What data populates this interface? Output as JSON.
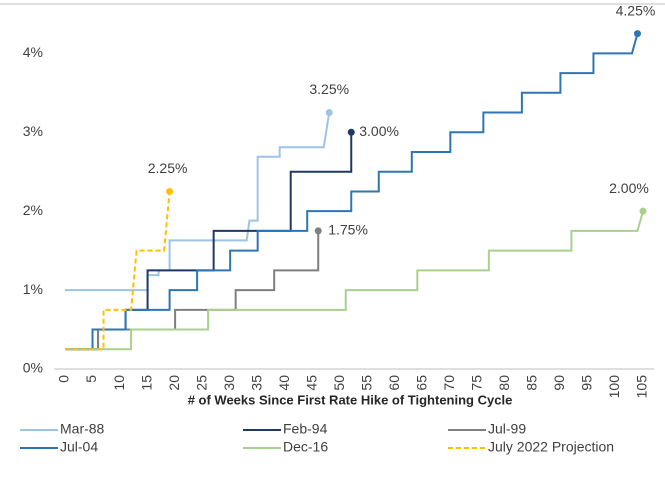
{
  "chart_data": {
    "type": "line",
    "x_label": "# of Weeks Since First Rate Hike of Tightening Cycle",
    "xlim": [
      -2,
      107
    ],
    "xticks": [
      0,
      5,
      10,
      15,
      20,
      25,
      30,
      35,
      40,
      45,
      50,
      55,
      60,
      65,
      70,
      75,
      80,
      85,
      90,
      95,
      100,
      105
    ],
    "ylim": [
      0,
      4.6
    ],
    "yticks": [
      {
        "value": 0,
        "label": "0%"
      },
      {
        "value": 1,
        "label": "1%"
      },
      {
        "value": 2,
        "label": "2%"
      },
      {
        "value": 3,
        "label": "3%"
      },
      {
        "value": 4,
        "label": "4%"
      }
    ],
    "legend": "bottom",
    "series": [
      {
        "name": "Mar-88",
        "color": "#9dc3e6",
        "end_label": "3.25%",
        "x": [
          0,
          15,
          15,
          17,
          17,
          19,
          19,
          33,
          33.5,
          35,
          35,
          39,
          39,
          47,
          48
        ],
        "values": [
          1,
          1,
          1.19,
          1.19,
          1.25,
          1.25,
          1.63,
          1.63,
          1.88,
          1.88,
          2.69,
          2.69,
          2.81,
          2.81,
          3.25
        ]
      },
      {
        "name": "Feb-94",
        "color": "#1f3864",
        "end_label": "3.00%",
        "x": [
          0,
          6,
          6,
          11,
          11,
          15,
          15,
          27,
          27,
          41,
          41,
          52,
          52
        ],
        "values": [
          0.25,
          0.25,
          0.5,
          0.5,
          0.75,
          0.75,
          1.25,
          1.25,
          1.75,
          1.75,
          2.5,
          2.5,
          3.0
        ]
      },
      {
        "name": "Jul-99",
        "color": "#7f7f7f",
        "end_label": "1.75%",
        "x": [
          0,
          6,
          6,
          20,
          20,
          31,
          31,
          38,
          38,
          46,
          46
        ],
        "values": [
          0.25,
          0.25,
          0.5,
          0.5,
          0.75,
          0.75,
          1.0,
          1.0,
          1.25,
          1.25,
          1.75
        ]
      },
      {
        "name": "Jul-04",
        "color": "#2e75b6",
        "end_label": "4.25%",
        "x": [
          0,
          5,
          5,
          11,
          11,
          19,
          19,
          24,
          24,
          30,
          30,
          35,
          35,
          44,
          44,
          52,
          52,
          57,
          57,
          63,
          63,
          70,
          70,
          76,
          76,
          83,
          83,
          90,
          90,
          96,
          96,
          103,
          104
        ],
        "values": [
          0.25,
          0.25,
          0.5,
          0.5,
          0.75,
          0.75,
          1.0,
          1.0,
          1.25,
          1.25,
          1.5,
          1.5,
          1.75,
          1.75,
          2.0,
          2.0,
          2.25,
          2.25,
          2.5,
          2.5,
          2.75,
          2.75,
          3.0,
          3.0,
          3.25,
          3.25,
          3.5,
          3.5,
          3.75,
          3.75,
          4.0,
          4.0,
          4.25
        ]
      },
      {
        "name": "Dec-16",
        "color": "#a9d18e",
        "end_label": "2.00%",
        "x": [
          0,
          12,
          12,
          26,
          26,
          51,
          51,
          64,
          64,
          77,
          77,
          92,
          92,
          104,
          105
        ],
        "values": [
          0.25,
          0.25,
          0.5,
          0.5,
          0.75,
          0.75,
          1.0,
          1.0,
          1.25,
          1.25,
          1.5,
          1.5,
          1.75,
          1.75,
          2.0
        ]
      },
      {
        "name": "July 2022 Projection",
        "color": "#ffc000",
        "dashed": true,
        "end_label": "2.25%",
        "x": [
          0,
          7,
          7,
          12,
          13,
          18,
          19
        ],
        "values": [
          0.25,
          0.25,
          0.75,
          0.75,
          1.5,
          1.5,
          2.25
        ]
      }
    ]
  }
}
